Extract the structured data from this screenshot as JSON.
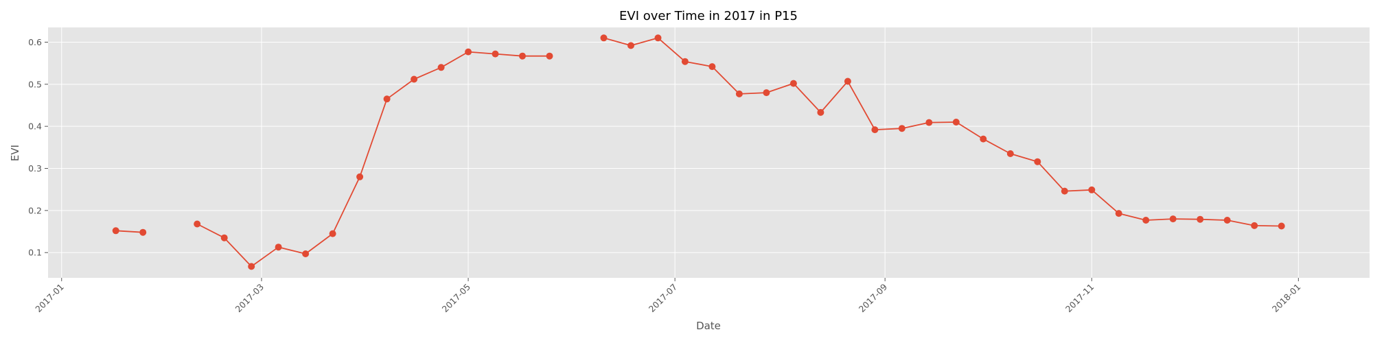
{
  "chart_data": {
    "type": "line",
    "title": "EVI over Time in 2017 in P15",
    "xlabel": "Date",
    "ylabel": "EVI",
    "x_tick_labels": [
      "2017-01",
      "2017-03",
      "2017-05",
      "2017-07",
      "2017-09",
      "2017-11",
      "2018-01"
    ],
    "x_tick_dates": [
      "2017-01-01",
      "2017-03-01",
      "2017-05-01",
      "2017-07-01",
      "2017-09-01",
      "2017-11-01",
      "2018-01-01"
    ],
    "y_tick_labels": [
      "0.1",
      "0.2",
      "0.3",
      "0.4",
      "0.5",
      "0.6"
    ],
    "y_tick_values": [
      0.1,
      0.2,
      0.3,
      0.4,
      0.5,
      0.6
    ],
    "xlim": [
      "2016-12-28",
      "2018-01-22"
    ],
    "ylim": [
      0.04,
      0.635
    ],
    "grid": true,
    "legend": "none",
    "series": [
      {
        "color": "#E24A33",
        "marker": "circle",
        "segments": [
          {
            "x": [
              "2017-01-17",
              "2017-01-25"
            ],
            "y": [
              0.152,
              0.148
            ]
          },
          {
            "x": [
              "2017-02-10",
              "2017-02-18",
              "2017-02-26",
              "2017-03-06",
              "2017-03-14",
              "2017-03-22",
              "2017-03-30",
              "2017-04-07",
              "2017-04-15",
              "2017-04-23",
              "2017-05-01",
              "2017-05-09",
              "2017-05-17",
              "2017-05-25"
            ],
            "y": [
              0.168,
              0.135,
              0.067,
              0.113,
              0.097,
              0.145,
              0.28,
              0.465,
              0.512,
              0.54,
              0.577,
              0.572,
              0.567,
              0.567
            ]
          },
          {
            "x": [
              "2017-06-10",
              "2017-06-18",
              "2017-06-26",
              "2017-07-04",
              "2017-07-12",
              "2017-07-20",
              "2017-07-28",
              "2017-08-05",
              "2017-08-13",
              "2017-08-21",
              "2017-08-29",
              "2017-09-06",
              "2017-09-14",
              "2017-09-22",
              "2017-09-30",
              "2017-10-08",
              "2017-10-16",
              "2017-10-24",
              "2017-11-01",
              "2017-11-09",
              "2017-11-17",
              "2017-11-25",
              "2017-12-03",
              "2017-12-11",
              "2017-12-19",
              "2017-12-27"
            ],
            "y": [
              0.61,
              0.592,
              0.61,
              0.554,
              0.542,
              0.477,
              0.48,
              0.502,
              0.433,
              0.507,
              0.392,
              0.395,
              0.409,
              0.41,
              0.37,
              0.335,
              0.316,
              0.246,
              0.249,
              0.193,
              0.177,
              0.18,
              0.179,
              0.177,
              0.164,
              0.163
            ]
          }
        ]
      }
    ]
  }
}
